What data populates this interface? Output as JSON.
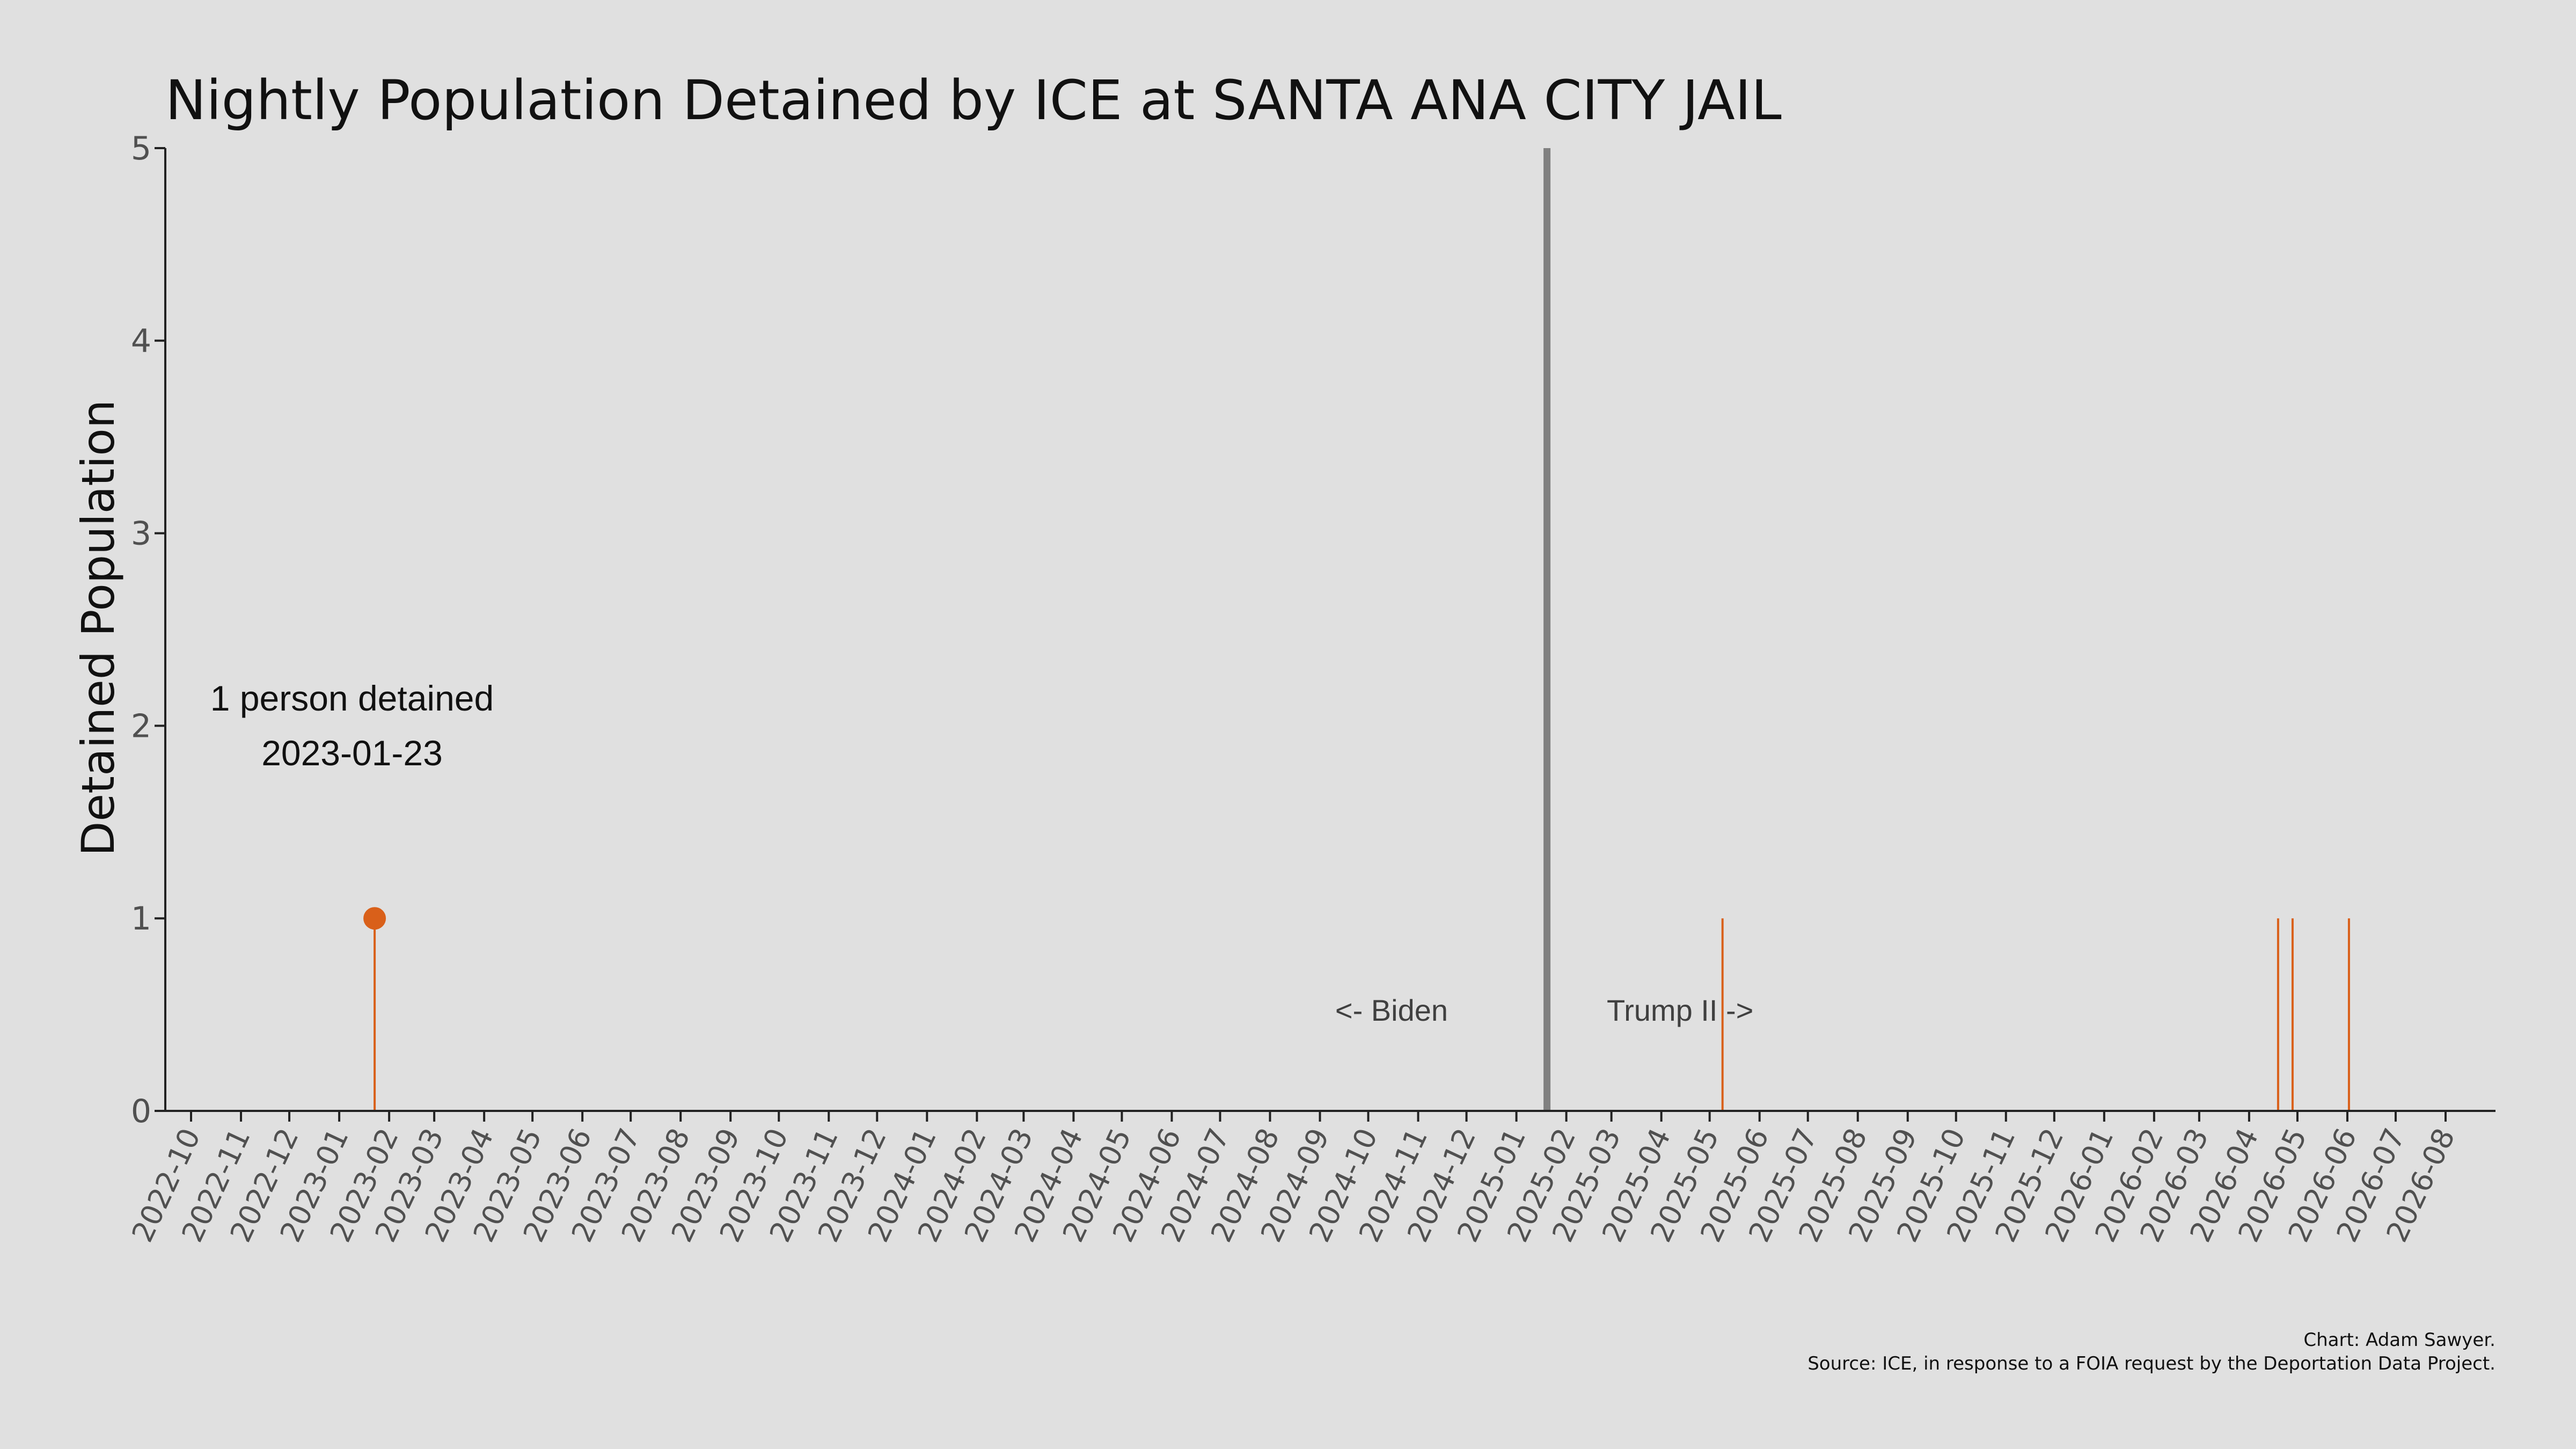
{
  "chart_data": {
    "type": "bar",
    "title": "Nightly Population Detained by ICE at SANTA ANA CITY JAIL",
    "xlabel": "",
    "ylabel": "Detained Population",
    "ylim": [
      0,
      5
    ],
    "yticks": [
      "0",
      "1",
      "2",
      "3",
      "4",
      "5"
    ],
    "xlim": [
      "2022-09-15",
      "2026-09-01"
    ],
    "xticks": [
      "2022-10",
      "2022-11",
      "2022-12",
      "2023-01",
      "2023-02",
      "2023-03",
      "2023-04",
      "2023-05",
      "2023-06",
      "2023-07",
      "2023-08",
      "2023-09",
      "2023-10",
      "2023-11",
      "2023-12",
      "2024-01",
      "2024-02",
      "2024-03",
      "2024-04",
      "2024-05",
      "2024-06",
      "2024-07",
      "2024-08",
      "2024-09",
      "2024-10",
      "2024-11",
      "2024-12",
      "2025-01",
      "2025-02",
      "2025-03",
      "2025-04",
      "2025-05",
      "2025-06",
      "2025-07",
      "2025-08",
      "2025-09",
      "2025-10",
      "2025-11",
      "2025-12",
      "2026-01",
      "2026-02",
      "2026-03",
      "2026-04",
      "2026-05",
      "2026-06",
      "2026-07",
      "2026-08"
    ],
    "series": [
      {
        "x": [
          "2023-01-23",
          "2025-05-09",
          "2026-04-19",
          "2026-04-28",
          "2026-06-02"
        ],
        "values": [
          1,
          1,
          1,
          1,
          1
        ]
      }
    ],
    "highlight": {
      "x": "2023-01-23",
      "value": 1
    },
    "divider": {
      "x": "2025-01-20"
    },
    "annotations": {
      "peak_line1": "1 person detained",
      "peak_line2": "2023-01-23",
      "left_era": "<- Biden",
      "right_era": "Trump II ->"
    },
    "grid": false,
    "legend": "none",
    "colors": {
      "bars": "#d9601a",
      "divider": "#808080",
      "background": "#e0e0e0"
    }
  },
  "credits": {
    "line1": "Chart: Adam Sawyer.",
    "line2": "Source: ICE, in response to a FOIA request by the Deportation Data Project."
  }
}
